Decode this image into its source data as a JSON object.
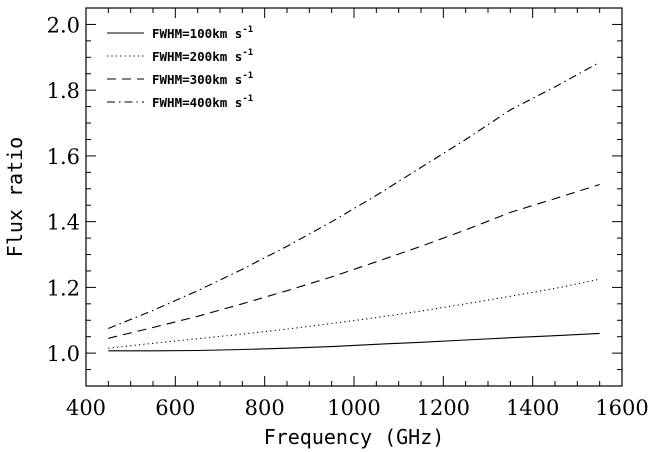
{
  "chart_data": {
    "type": "line",
    "title": "",
    "xlabel": "Frequency (GHz)",
    "ylabel": "Flux ratio",
    "xlim": [
      400,
      1600
    ],
    "ylim": [
      0.9,
      2.05
    ],
    "x_ticks": [
      400,
      600,
      800,
      1000,
      1200,
      1400,
      1600
    ],
    "x_tick_labels": [
      "400",
      "600",
      "800",
      "1000",
      "1200",
      "1400",
      "1600"
    ],
    "y_ticks": [
      1.0,
      1.2,
      1.4,
      1.6,
      1.8,
      2.0
    ],
    "y_tick_labels": [
      "1.0",
      "1.2",
      "1.4",
      "1.6",
      "1.8",
      "2.0"
    ],
    "grid": false,
    "legend_position": "top-left",
    "x": [
      450,
      550,
      650,
      750,
      850,
      950,
      1050,
      1150,
      1250,
      1350,
      1450,
      1550
    ],
    "series": [
      {
        "name": "FWHM=100km s",
        "name_sup": "-1",
        "dash": "solid",
        "values": [
          1.007,
          1.007,
          1.008,
          1.011,
          1.015,
          1.02,
          1.027,
          1.033,
          1.04,
          1.047,
          1.053,
          1.06
        ]
      },
      {
        "name": "FWHM=200km s",
        "name_sup": "-1",
        "dash": "dotted",
        "values": [
          1.015,
          1.03,
          1.044,
          1.058,
          1.073,
          1.09,
          1.108,
          1.128,
          1.15,
          1.173,
          1.197,
          1.225
        ]
      },
      {
        "name": "FWHM=300km s",
        "name_sup": "-1",
        "dash": "dashed",
        "values": [
          1.045,
          1.078,
          1.112,
          1.15,
          1.19,
          1.232,
          1.278,
          1.325,
          1.375,
          1.428,
          1.47,
          1.513
        ]
      },
      {
        "name": "FWHM=400km s",
        "name_sup": "-1",
        "dash": "dashdot",
        "values": [
          1.075,
          1.13,
          1.19,
          1.255,
          1.325,
          1.4,
          1.48,
          1.565,
          1.65,
          1.74,
          1.81,
          1.885
        ]
      }
    ]
  },
  "colors": {
    "line": "#000000",
    "background": "#ffffff"
  }
}
